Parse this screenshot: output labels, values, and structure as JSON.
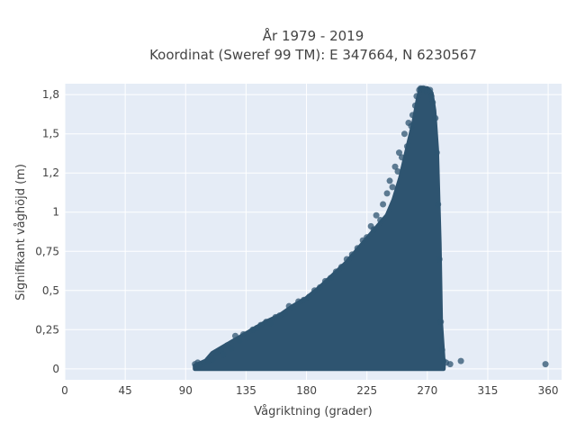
{
  "chart_data": {
    "type": "scatter",
    "title_lines": [
      "År 1979 - 2019",
      "Koordinat (Sweref 99 TM): E 347664, N 6230567"
    ],
    "xlabel": "Vågriktning (grader)",
    "ylabel": "Signifikant våghöjd (m)",
    "xlim": [
      0,
      370
    ],
    "ylim": [
      -0.07,
      1.82
    ],
    "x_ticks": [
      {
        "value": 0,
        "label": "0"
      },
      {
        "value": 45,
        "label": "45"
      },
      {
        "value": 90,
        "label": "90"
      },
      {
        "value": 135,
        "label": "135"
      },
      {
        "value": 180,
        "label": "180"
      },
      {
        "value": 225,
        "label": "225"
      },
      {
        "value": 270,
        "label": "270"
      },
      {
        "value": 315,
        "label": "315"
      },
      {
        "value": 360,
        "label": "360"
      }
    ],
    "y_ticks": [
      {
        "value": 0,
        "label": "0"
      },
      {
        "value": 0.25,
        "label": "0,25"
      },
      {
        "value": 0.5,
        "label": "0,5"
      },
      {
        "value": 0.75,
        "label": "0,75"
      },
      {
        "value": 1,
        "label": "1"
      },
      {
        "value": 1.25,
        "label": "1,2"
      },
      {
        "value": 1.5,
        "label": "1,5"
      },
      {
        "value": 1.75,
        "label": "1,8"
      }
    ],
    "grid": true,
    "series": [
      {
        "color": "#2e5470",
        "envelope": [
          [
            97,
            0.02
          ],
          [
            105,
            0.05
          ],
          [
            110,
            0.1
          ],
          [
            120,
            0.15
          ],
          [
            130,
            0.2
          ],
          [
            140,
            0.25
          ],
          [
            150,
            0.3
          ],
          [
            160,
            0.34
          ],
          [
            170,
            0.4
          ],
          [
            180,
            0.45
          ],
          [
            190,
            0.52
          ],
          [
            200,
            0.6
          ],
          [
            210,
            0.68
          ],
          [
            220,
            0.78
          ],
          [
            230,
            0.88
          ],
          [
            240,
            0.98
          ],
          [
            245,
            1.08
          ],
          [
            250,
            1.22
          ],
          [
            255,
            1.4
          ],
          [
            260,
            1.58
          ],
          [
            263,
            1.72
          ],
          [
            265,
            1.79
          ],
          [
            270,
            1.79
          ],
          [
            273,
            1.76
          ],
          [
            275,
            1.65
          ],
          [
            277,
            1.4
          ],
          [
            279,
            0.8
          ],
          [
            280,
            0.3
          ],
          [
            282,
            0.04
          ]
        ],
        "points": [
          [
            97,
            0.03
          ],
          [
            99,
            0.04
          ],
          [
            100,
            0.02
          ],
          [
            104,
            0.04
          ],
          [
            107,
            0.05
          ],
          [
            110,
            0.06
          ],
          [
            113,
            0.1
          ],
          [
            116,
            0.12
          ],
          [
            118,
            0.09
          ],
          [
            121,
            0.15
          ],
          [
            124,
            0.13
          ],
          [
            127,
            0.21
          ],
          [
            130,
            0.18
          ],
          [
            133,
            0.22
          ],
          [
            136,
            0.2
          ],
          [
            140,
            0.25
          ],
          [
            143,
            0.26
          ],
          [
            146,
            0.28
          ],
          [
            150,
            0.3
          ],
          [
            153,
            0.29
          ],
          [
            157,
            0.33
          ],
          [
            160,
            0.34
          ],
          [
            164,
            0.35
          ],
          [
            167,
            0.4
          ],
          [
            170,
            0.39
          ],
          [
            174,
            0.43
          ],
          [
            178,
            0.44
          ],
          [
            182,
            0.46
          ],
          [
            186,
            0.5
          ],
          [
            190,
            0.52
          ],
          [
            194,
            0.56
          ],
          [
            198,
            0.58
          ],
          [
            202,
            0.62
          ],
          [
            206,
            0.65
          ],
          [
            210,
            0.7
          ],
          [
            214,
            0.73
          ],
          [
            218,
            0.77
          ],
          [
            222,
            0.82
          ],
          [
            225,
            0.84
          ],
          [
            228,
            0.91
          ],
          [
            230,
            0.89
          ],
          [
            232,
            0.98
          ],
          [
            235,
            0.95
          ],
          [
            237,
            1.05
          ],
          [
            240,
            1.12
          ],
          [
            242,
            1.2
          ],
          [
            244,
            1.16
          ],
          [
            246,
            1.29
          ],
          [
            248,
            1.26
          ],
          [
            249,
            1.38
          ],
          [
            251,
            1.35
          ],
          [
            253,
            1.5
          ],
          [
            255,
            1.42
          ],
          [
            256,
            1.57
          ],
          [
            258,
            1.55
          ],
          [
            259,
            1.62
          ],
          [
            261,
            1.68
          ],
          [
            262,
            1.74
          ],
          [
            264,
            1.78
          ],
          [
            265,
            1.79
          ],
          [
            267,
            1.79
          ],
          [
            268,
            1.78
          ],
          [
            270,
            1.77
          ],
          [
            272,
            1.78
          ],
          [
            273,
            1.74
          ],
          [
            274,
            1.7
          ],
          [
            276,
            1.6
          ],
          [
            277,
            1.38
          ],
          [
            278,
            1.05
          ],
          [
            279,
            0.7
          ],
          [
            280,
            0.3
          ],
          [
            281,
            0.12
          ],
          [
            282,
            0.05
          ],
          [
            284,
            0.04
          ],
          [
            287,
            0.03
          ],
          [
            295,
            0.05
          ],
          [
            358,
            0.03
          ]
        ]
      }
    ]
  }
}
